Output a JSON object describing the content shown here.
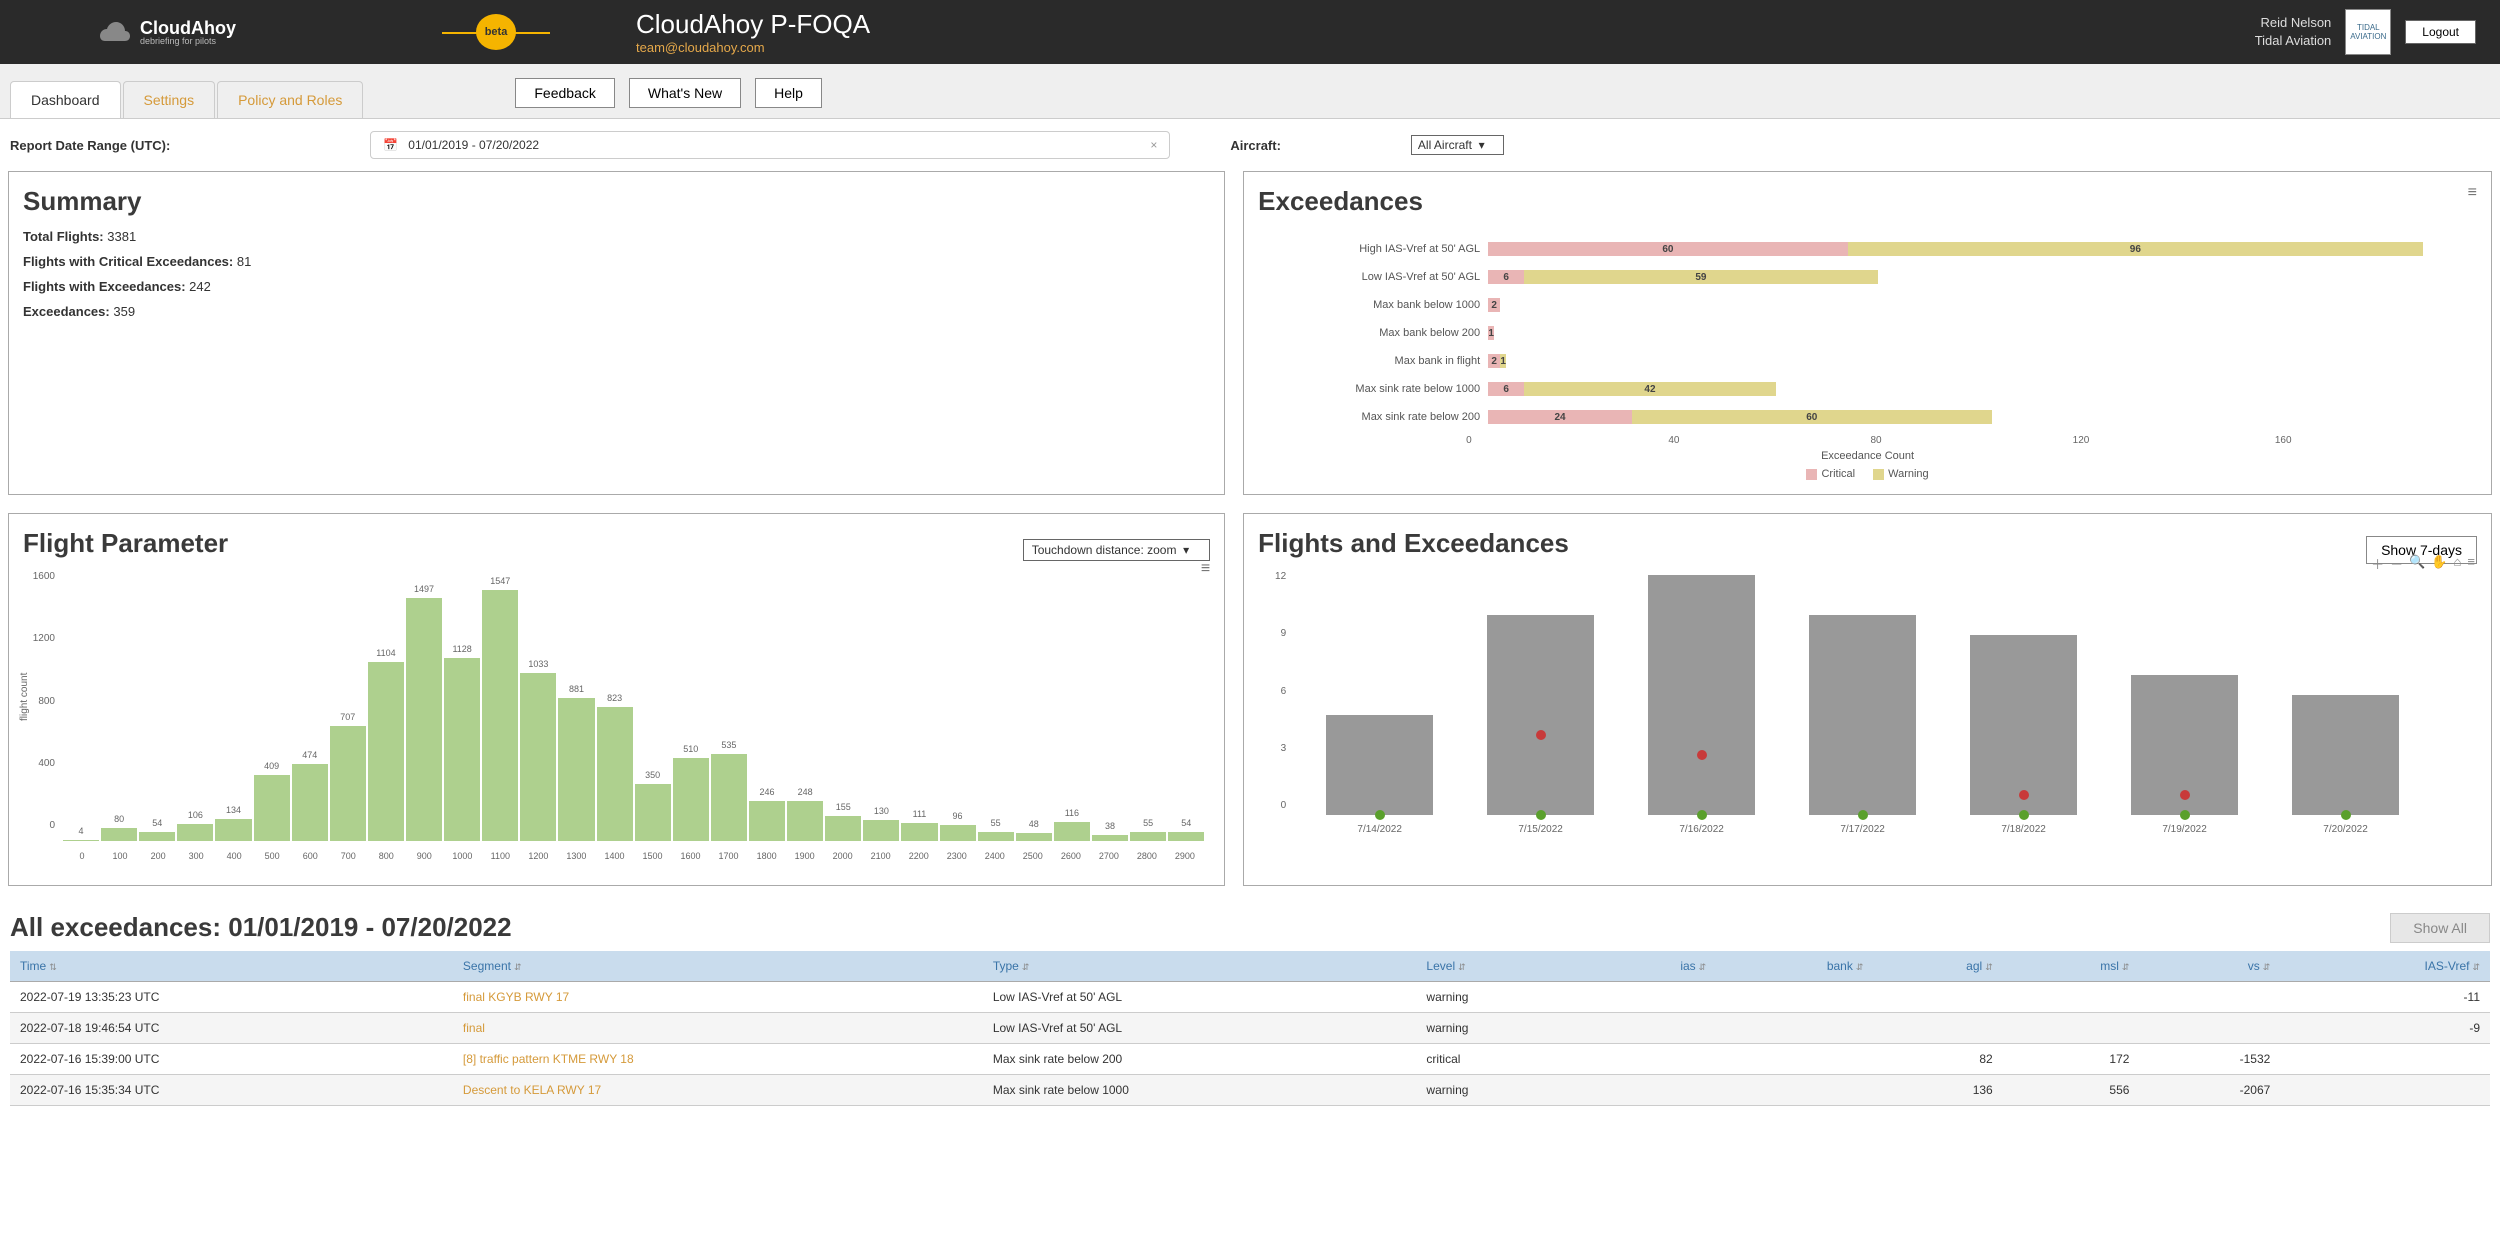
{
  "header": {
    "brand_main": "CloudAhoy",
    "brand_sub": "debriefing for pilots",
    "beta": "beta",
    "app_title": "CloudAhoy P-FOQA",
    "app_email": "team@cloudahoy.com",
    "user_name": "Reid Nelson",
    "user_org": "Tidal Aviation",
    "partner": "TIDAL AVIATION",
    "logout": "Logout"
  },
  "tabs": {
    "dashboard": "Dashboard",
    "settings": "Settings",
    "policy": "Policy and Roles",
    "feedback": "Feedback",
    "whatsnew": "What's New",
    "help": "Help"
  },
  "filters": {
    "date_label": "Report Date Range (UTC):",
    "date_value": "01/01/2019 - 07/20/2022",
    "aircraft_label": "Aircraft:",
    "aircraft_value": "All Aircraft"
  },
  "summary": {
    "title": "Summary",
    "l1a": "Total Flights:",
    "l1b": "3381",
    "l2a": "Flights with Critical Exceedances:",
    "l2b": "81",
    "l3a": "Flights with Exceedances:",
    "l3b": "242",
    "l4a": "Exceedances:",
    "l4b": "359"
  },
  "exceed": {
    "title": "Exceedances",
    "max": 160,
    "rows": [
      {
        "label": "High IAS-Vref at 50' AGL",
        "crit": 60,
        "warn": 96
      },
      {
        "label": "Low IAS-Vref at 50' AGL",
        "crit": 6,
        "warn": 59
      },
      {
        "label": "Max bank below 1000",
        "crit": 2,
        "warn": 0
      },
      {
        "label": "Max bank below 200",
        "crit": 1,
        "warn": 0
      },
      {
        "label": "Max bank in flight",
        "crit": 2,
        "warn": 1
      },
      {
        "label": "Max sink rate below 1000",
        "crit": 6,
        "warn": 42
      },
      {
        "label": "Max sink rate below 200",
        "crit": 24,
        "warn": 60
      }
    ],
    "axis_ticks": [
      "0",
      "40",
      "80",
      "120",
      "160"
    ],
    "axis_title": "Exceedance Count",
    "legend_crit": "Critical",
    "legend_warn": "Warning",
    "colors": {
      "crit": "#e9b5b5",
      "warn": "#e0d68d"
    }
  },
  "param": {
    "title": "Flight Parameter",
    "select": "Touchdown distance: zoom",
    "ylabel": "flight count",
    "ymax": 1600,
    "yticks": [
      "1600",
      "1200",
      "800",
      "400",
      "0"
    ],
    "bars": [
      {
        "x": "0",
        "v": 4
      },
      {
        "x": "100",
        "v": 80
      },
      {
        "x": "200",
        "v": 54
      },
      {
        "x": "300",
        "v": 106
      },
      {
        "x": "400",
        "v": 134
      },
      {
        "x": "500",
        "v": 409
      },
      {
        "x": "600",
        "v": 474
      },
      {
        "x": "700",
        "v": 707
      },
      {
        "x": "800",
        "v": 1104
      },
      {
        "x": "900",
        "v": 1497
      },
      {
        "x": "1000",
        "v": 1128
      },
      {
        "x": "1100",
        "v": 1547
      },
      {
        "x": "1200",
        "v": 1033
      },
      {
        "x": "1300",
        "v": 881
      },
      {
        "x": "1400",
        "v": 823
      },
      {
        "x": "1500",
        "v": 350
      },
      {
        "x": "1600",
        "v": 510
      },
      {
        "x": "1700",
        "v": 535
      },
      {
        "x": "1800",
        "v": 246
      },
      {
        "x": "1900",
        "v": 248
      },
      {
        "x": "2000",
        "v": 155
      },
      {
        "x": "2100",
        "v": 130
      },
      {
        "x": "2200",
        "v": 111
      },
      {
        "x": "2300",
        "v": 96
      },
      {
        "x": "2400",
        "v": 55
      },
      {
        "x": "2500",
        "v": 48
      },
      {
        "x": "2600",
        "v": 116
      },
      {
        "x": "2700",
        "v": 38
      },
      {
        "x": "2800",
        "v": 55
      },
      {
        "x": "2900",
        "v": 54
      }
    ],
    "bar_color": "#aed08e"
  },
  "fe": {
    "title": "Flights and Exceedances",
    "show7": "Show 7-days",
    "ymax": 12,
    "yticks": [
      "12",
      "9",
      "6",
      "3",
      "0"
    ],
    "cols": [
      {
        "x": "7/14/2022",
        "h": 5,
        "red": null
      },
      {
        "x": "7/15/2022",
        "h": 10,
        "red": 4
      },
      {
        "x": "7/16/2022",
        "h": 12,
        "red": 3
      },
      {
        "x": "7/17/2022",
        "h": 10,
        "red": null
      },
      {
        "x": "7/18/2022",
        "h": 9,
        "red": 1
      },
      {
        "x": "7/19/2022",
        "h": 7,
        "red": 1
      },
      {
        "x": "7/20/2022",
        "h": 6,
        "red": null
      }
    ],
    "bar_color": "#999999"
  },
  "table": {
    "title": "All exceedances: 01/01/2019 - 07/20/2022",
    "showall": "Show All",
    "cols": {
      "time": "Time",
      "segment": "Segment",
      "type": "Type",
      "level": "Level",
      "ias": "ias",
      "bank": "bank",
      "agl": "agl",
      "msl": "msl",
      "vs": "vs",
      "iasvref": "IAS-Vref"
    },
    "rows": [
      {
        "time": "2022-07-19 13:35:23 UTC",
        "segment": "final KGYB RWY 17",
        "type": "Low IAS-Vref at 50' AGL",
        "level": "warning",
        "ias": "",
        "bank": "",
        "agl": "",
        "msl": "",
        "vs": "",
        "iasvref": "-11"
      },
      {
        "time": "2022-07-18 19:46:54 UTC",
        "segment": "final",
        "type": "Low IAS-Vref at 50' AGL",
        "level": "warning",
        "ias": "",
        "bank": "",
        "agl": "",
        "msl": "",
        "vs": "",
        "iasvref": "-9"
      },
      {
        "time": "2022-07-16 15:39:00 UTC",
        "segment": "[8] traffic pattern KTME RWY 18",
        "type": "Max sink rate below 200",
        "level": "critical",
        "ias": "",
        "bank": "",
        "agl": "82",
        "msl": "172",
        "vs": "-1532",
        "iasvref": ""
      },
      {
        "time": "2022-07-16 15:35:34 UTC",
        "segment": "Descent to KELA RWY 17",
        "type": "Max sink rate below 1000",
        "level": "warning",
        "ias": "",
        "bank": "",
        "agl": "136",
        "msl": "556",
        "vs": "-2067",
        "iasvref": ""
      }
    ]
  }
}
